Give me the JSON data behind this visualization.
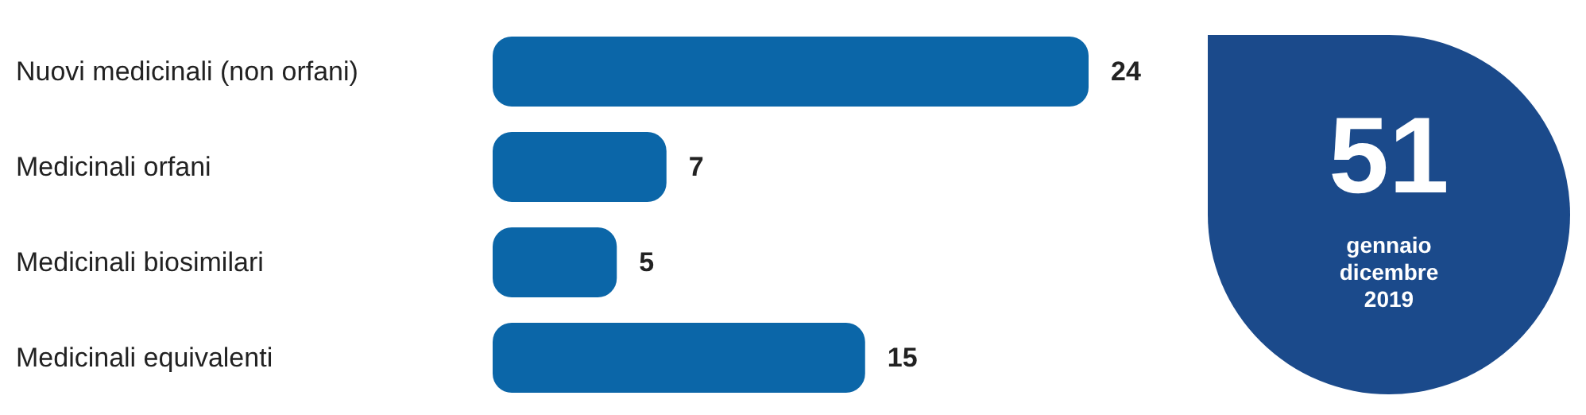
{
  "chart_data": {
    "type": "bar",
    "orientation": "horizontal",
    "categories": [
      "Nuovi medicinali (non orfani)",
      "Medicinali orfani",
      "Medicinali biosimilari",
      "Medicinali equivalenti"
    ],
    "values": [
      24,
      7,
      5,
      15
    ],
    "color": "#0b66a8",
    "data_labels": true,
    "annotations": [
      "51",
      "gennaio\ndicembre\n2019"
    ]
  }
}
